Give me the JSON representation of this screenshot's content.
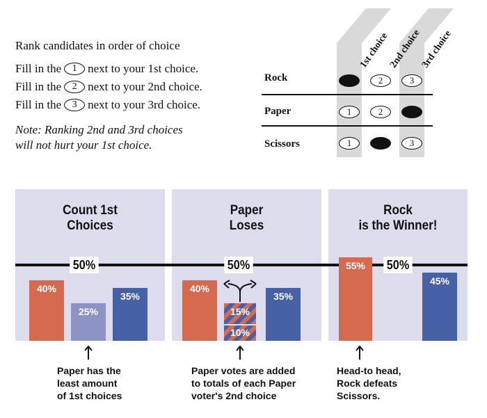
{
  "instructions": {
    "title": "Rank candidates in order of choice",
    "lines": [
      {
        "pre": "Fill in the",
        "num": "1",
        "post": "next to your 1st choice."
      },
      {
        "pre": "Fill in the",
        "num": "2",
        "post": "next to your 2nd choice."
      },
      {
        "pre": "Fill in the",
        "num": "3",
        "post": "next to your 3rd choice."
      }
    ],
    "note_line1": "Note: Ranking 2nd and 3rd choices",
    "note_line2": "will not hurt your 1st choice."
  },
  "ballot": {
    "columns": [
      "1st choice",
      "2nd choice",
      "3rd choice"
    ],
    "rows": [
      {
        "name": "Rock",
        "marks": [
          "filled",
          "2",
          "3"
        ]
      },
      {
        "name": "Paper",
        "marks": [
          "1",
          "2",
          "filled"
        ]
      },
      {
        "name": "Scissors",
        "marks": [
          "1",
          "filled",
          "3"
        ]
      }
    ]
  },
  "threshold_label": "50%",
  "panels": [
    {
      "title_lines": [
        "Count 1st",
        "Choices"
      ],
      "bars": [
        {
          "label": "40%",
          "value": 40,
          "color": "#d66a4f"
        },
        {
          "label": "25%",
          "value": 25,
          "color": "#8d93c5"
        },
        {
          "label": "35%",
          "value": 35,
          "color": "#4660a5"
        }
      ],
      "caption_lines": [
        "Paper has the",
        "least amount",
        "of 1st choices"
      ]
    },
    {
      "title_lines": [
        "Paper",
        "Loses"
      ],
      "bars": [
        {
          "label": "40%",
          "value": 40,
          "color": "#d66a4f"
        },
        {
          "label": "15%",
          "value": 15,
          "color": "#d66a4f"
        },
        {
          "label": "10%",
          "value": 10,
          "color": "#4660a5"
        },
        {
          "label": "35%",
          "value": 35,
          "color": "#4660a5"
        }
      ],
      "caption_lines": [
        "Paper votes are added",
        "to totals of each Paper",
        "voter's 2nd choice"
      ]
    },
    {
      "title_lines": [
        "Rock",
        "is the Winner!"
      ],
      "bars": [
        {
          "label": "55%",
          "value": 55,
          "color": "#d66a4f"
        },
        {
          "label": "45%",
          "value": 45,
          "color": "#4660a5"
        }
      ],
      "caption_lines": [
        "Head-to head,",
        "Rock defeats",
        "Scissors."
      ]
    }
  ],
  "colors": {
    "orange": "#d66a4f",
    "blue": "#4660a5",
    "lavender": "#8d93c5",
    "panel_bg": "#dcdcec"
  },
  "icons": [
    "up-arrow-icon",
    "split-arrows-icon"
  ]
}
